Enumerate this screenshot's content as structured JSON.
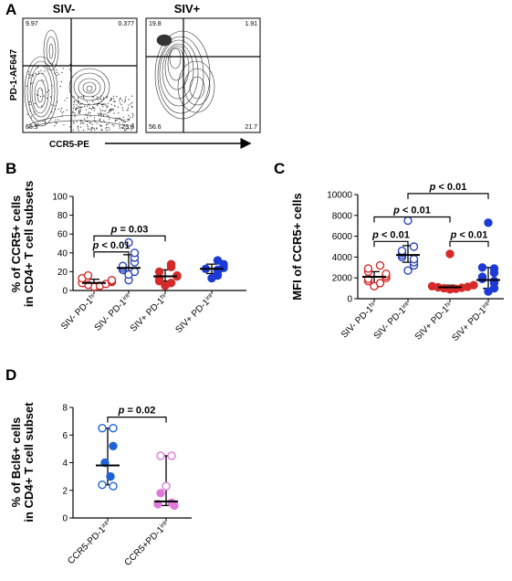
{
  "panel_a": {
    "letter": "A",
    "y_axis_label": "PD-1-AF647",
    "x_axis_label": "CCR5-PE",
    "plots": [
      {
        "title": "SIV-",
        "quadrants": {
          "top_left": "9.97",
          "top_right": "0.377",
          "bottom_left": "65.9",
          "bottom_right": "23.8"
        }
      },
      {
        "title": "SIV+",
        "quadrants": {
          "top_left": "19.8",
          "top_right": "1.91",
          "bottom_left": "56.6",
          "bottom_right": "21.7"
        }
      }
    ]
  },
  "chart_data": [
    {
      "panel": "B",
      "type": "scatter",
      "ylabel_line1": "% of CCR5+ cells",
      "ylabel_line2": "in CD4+ T cell subsets",
      "ylim": [
        0,
        100
      ],
      "yticks": [
        0,
        20,
        40,
        60,
        80,
        100
      ],
      "categories": [
        {
          "base": "SIV- PD-1",
          "sup": "hi"
        },
        {
          "base": "SIV- PD-1",
          "sup": "int"
        },
        {
          "base": "SIV+ PD-1",
          "sup": "hi"
        },
        {
          "base": "SIV+ PD-1",
          "sup": "int"
        }
      ],
      "series": [
        {
          "color": "#d42a2a",
          "filled": false,
          "values": [
            4,
            5,
            6,
            7,
            8,
            9,
            10,
            11,
            13,
            16
          ],
          "median": 8,
          "range": [
            6,
            12
          ]
        },
        {
          "color": "#2d46b5",
          "filled": false,
          "values": [
            11,
            17,
            20,
            22,
            24,
            26,
            30,
            35,
            40,
            51
          ],
          "median": 24,
          "range": [
            18,
            38
          ]
        },
        {
          "color": "#d42a2a",
          "filled": true,
          "values": [
            5,
            8,
            10,
            13,
            14,
            15,
            16,
            20,
            25,
            28
          ],
          "median": 15,
          "range": [
            10,
            22
          ]
        },
        {
          "color": "#1c3bd6",
          "filled": true,
          "values": [
            13,
            16,
            20,
            22,
            23,
            24,
            26,
            28,
            32
          ],
          "median": 23,
          "range": [
            18,
            28
          ]
        }
      ],
      "annotations": [
        {
          "from": 0,
          "to": 1,
          "text": "p < 0.01",
          "y": 41
        },
        {
          "from": 0,
          "to": 2,
          "text": "p = 0.03",
          "y": 58
        }
      ]
    },
    {
      "panel": "C",
      "type": "scatter",
      "ylabel_line1": "MFI of CCR5+ cells",
      "ylim": [
        0,
        10000
      ],
      "yticks": [
        0,
        2000,
        4000,
        6000,
        8000,
        10000
      ],
      "categories": [
        {
          "base": "SIV- PD-1",
          "sup": "hi"
        },
        {
          "base": "SIV- PD-1",
          "sup": "int"
        },
        {
          "base": "SIV+ PD-1",
          "sup": "hi"
        },
        {
          "base": "SIV+ PD-1",
          "sup": "int"
        }
      ],
      "series": [
        {
          "color": "#d42a2a",
          "filled": false,
          "values": [
            1200,
            1500,
            1700,
            1900,
            2000,
            2200,
            2400,
            2600,
            2900,
            3200
          ],
          "median": 2100,
          "range": [
            1500,
            2600
          ]
        },
        {
          "color": "#2d46b5",
          "filled": false,
          "values": [
            2700,
            3200,
            3500,
            3800,
            4000,
            4200,
            4400,
            4600,
            5000,
            7500
          ],
          "median": 4200,
          "range": [
            3500,
            5100
          ]
        },
        {
          "color": "#d42a2a",
          "filled": true,
          "values": [
            900,
            950,
            1000,
            1050,
            1100,
            1150,
            1200,
            1300,
            4300
          ],
          "median": 1100,
          "range": [
            1000,
            1300
          ]
        },
        {
          "color": "#1c3bd6",
          "filled": true,
          "values": [
            700,
            1000,
            1500,
            1700,
            1900,
            2100,
            2500,
            2900,
            3000,
            7300
          ],
          "median": 1800,
          "range": [
            1000,
            3000
          ]
        }
      ],
      "annotations": [
        {
          "from": 0,
          "to": 1,
          "text": "p < 0.01",
          "y": 5500
        },
        {
          "from": 2,
          "to": 3,
          "text": "p < 0.01",
          "y": 5500
        },
        {
          "from": 0,
          "to": 2,
          "text": "p < 0.01",
          "y": 7850
        },
        {
          "from": 1,
          "to": 3,
          "text": "p < 0.01",
          "y": 10100
        }
      ]
    },
    {
      "panel": "D",
      "type": "scatter",
      "ylabel_line1": "% of Bcl6+ cells",
      "ylabel_line2": "in CD4+ T cell subset",
      "ylim": [
        0,
        8
      ],
      "yticks": [
        0,
        2,
        4,
        6,
        8
      ],
      "categories": [
        {
          "base": "CCR5-PD-1",
          "sup": "int"
        },
        {
          "base": "CCR5+PD-1",
          "sup": "int"
        }
      ],
      "series": [
        {
          "color": "#1e63d6",
          "points": [
            {
              "v": 6.5,
              "filled": false,
              "dx": -0.1
            },
            {
              "v": 6.5,
              "filled": false,
              "dx": 0.1
            },
            {
              "v": 5.2,
              "filled": true,
              "dx": 0.1
            },
            {
              "v": 4.0,
              "filled": true,
              "dx": -0.05
            },
            {
              "v": 3.0,
              "filled": true,
              "dx": 0.05
            },
            {
              "v": 2.4,
              "filled": false,
              "dx": -0.1
            },
            {
              "v": 2.3,
              "filled": false,
              "dx": 0.1
            }
          ],
          "median": 3.8,
          "range": [
            2.4,
            6.5
          ]
        },
        {
          "color": "#e07ad8",
          "points": [
            {
              "v": 4.5,
              "filled": false,
              "dx": -0.1
            },
            {
              "v": 4.5,
              "filled": false,
              "dx": 0.1
            },
            {
              "v": 2.3,
              "filled": false,
              "dx": 0
            },
            {
              "v": 1.8,
              "filled": true,
              "dx": -0.1
            },
            {
              "v": 1.1,
              "filled": true,
              "dx": 0.1
            },
            {
              "v": 1.0,
              "filled": true,
              "dx": -0.15
            },
            {
              "v": 0.9,
              "filled": true,
              "dx": 0.15
            }
          ],
          "median": 1.2,
          "range": [
            0.9,
            4.5
          ]
        }
      ],
      "annotations": [
        {
          "from": 0,
          "to": 1,
          "text": "p = 0.02",
          "y": 7.3
        }
      ]
    }
  ]
}
